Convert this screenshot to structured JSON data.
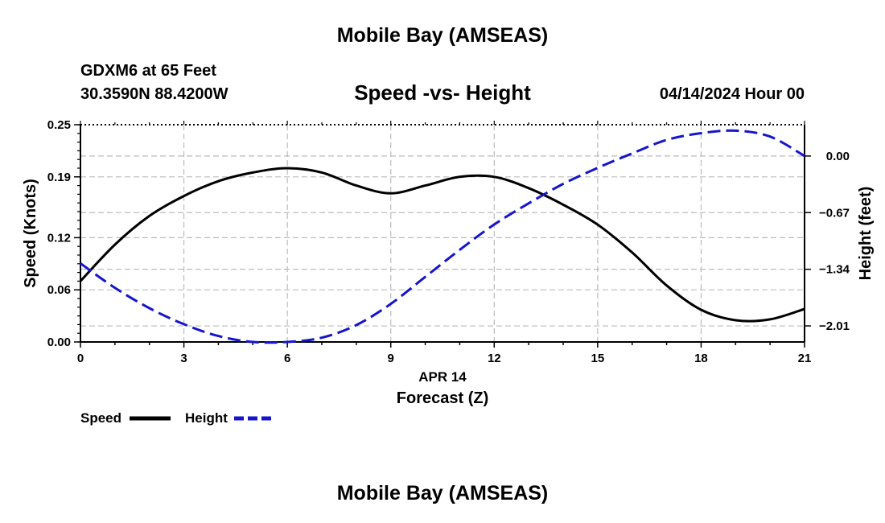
{
  "header": {
    "title": "Mobile Bay (AMSEAS)",
    "station": "GDXM6 at 65 Feet",
    "coords": "30.3590N  88.4200W",
    "chart_title": "Speed -vs- Height",
    "datetime": "04/14/2024 Hour 00"
  },
  "footer": {
    "title": "Mobile Bay (AMSEAS)"
  },
  "chart_data": {
    "type": "line",
    "title": "Speed -vs- Height",
    "xlabel": "Forecast (Z)",
    "xsublabel": "APR 14",
    "ylabel": "Speed (Knots)",
    "y2label": "Height (feet)",
    "xlim": [
      0,
      21
    ],
    "ylim": [
      0,
      0.25
    ],
    "y2lim": [
      -2.2,
      0.37
    ],
    "xticks": [
      0,
      3,
      6,
      9,
      12,
      15,
      18,
      21
    ],
    "yticks": [
      0.0,
      0.06,
      0.12,
      0.19,
      0.25
    ],
    "ytick_labels": [
      "0.00",
      "0.06",
      "0.12",
      "0.19",
      "0.25"
    ],
    "y2ticks": [
      0.0,
      -0.67,
      -1.34,
      -2.01
    ],
    "y2tick_labels": [
      "0.00",
      "−0.67",
      "−1.34",
      "−2.01"
    ],
    "grid": true,
    "legend_position": "bottom-left",
    "series": [
      {
        "name": "Speed",
        "axis": "left",
        "color": "#000000",
        "dash": "solid",
        "x": [
          0,
          1,
          2,
          3,
          4,
          5,
          6,
          7,
          8,
          9,
          10,
          11,
          12,
          13,
          14,
          15,
          16,
          17,
          18,
          19,
          20,
          21
        ],
        "y": [
          0.07,
          0.112,
          0.145,
          0.168,
          0.185,
          0.195,
          0.2,
          0.195,
          0.18,
          0.171,
          0.18,
          0.19,
          0.19,
          0.177,
          0.158,
          0.135,
          0.103,
          0.065,
          0.037,
          0.025,
          0.026,
          0.038
        ]
      },
      {
        "name": "Height",
        "axis": "right",
        "color": "#1515cc",
        "dash": "dashed",
        "x": [
          0,
          1,
          2,
          3,
          4,
          5,
          6,
          7,
          8,
          9,
          10,
          11,
          12,
          13,
          14,
          15,
          16,
          17,
          18,
          19,
          20,
          21
        ],
        "y": [
          -1.27,
          -1.56,
          -1.8,
          -1.99,
          -2.13,
          -2.2,
          -2.2,
          -2.15,
          -2.0,
          -1.75,
          -1.43,
          -1.11,
          -0.81,
          -0.56,
          -0.33,
          -0.14,
          0.03,
          0.19,
          0.27,
          0.3,
          0.23,
          0.0
        ]
      }
    ]
  }
}
